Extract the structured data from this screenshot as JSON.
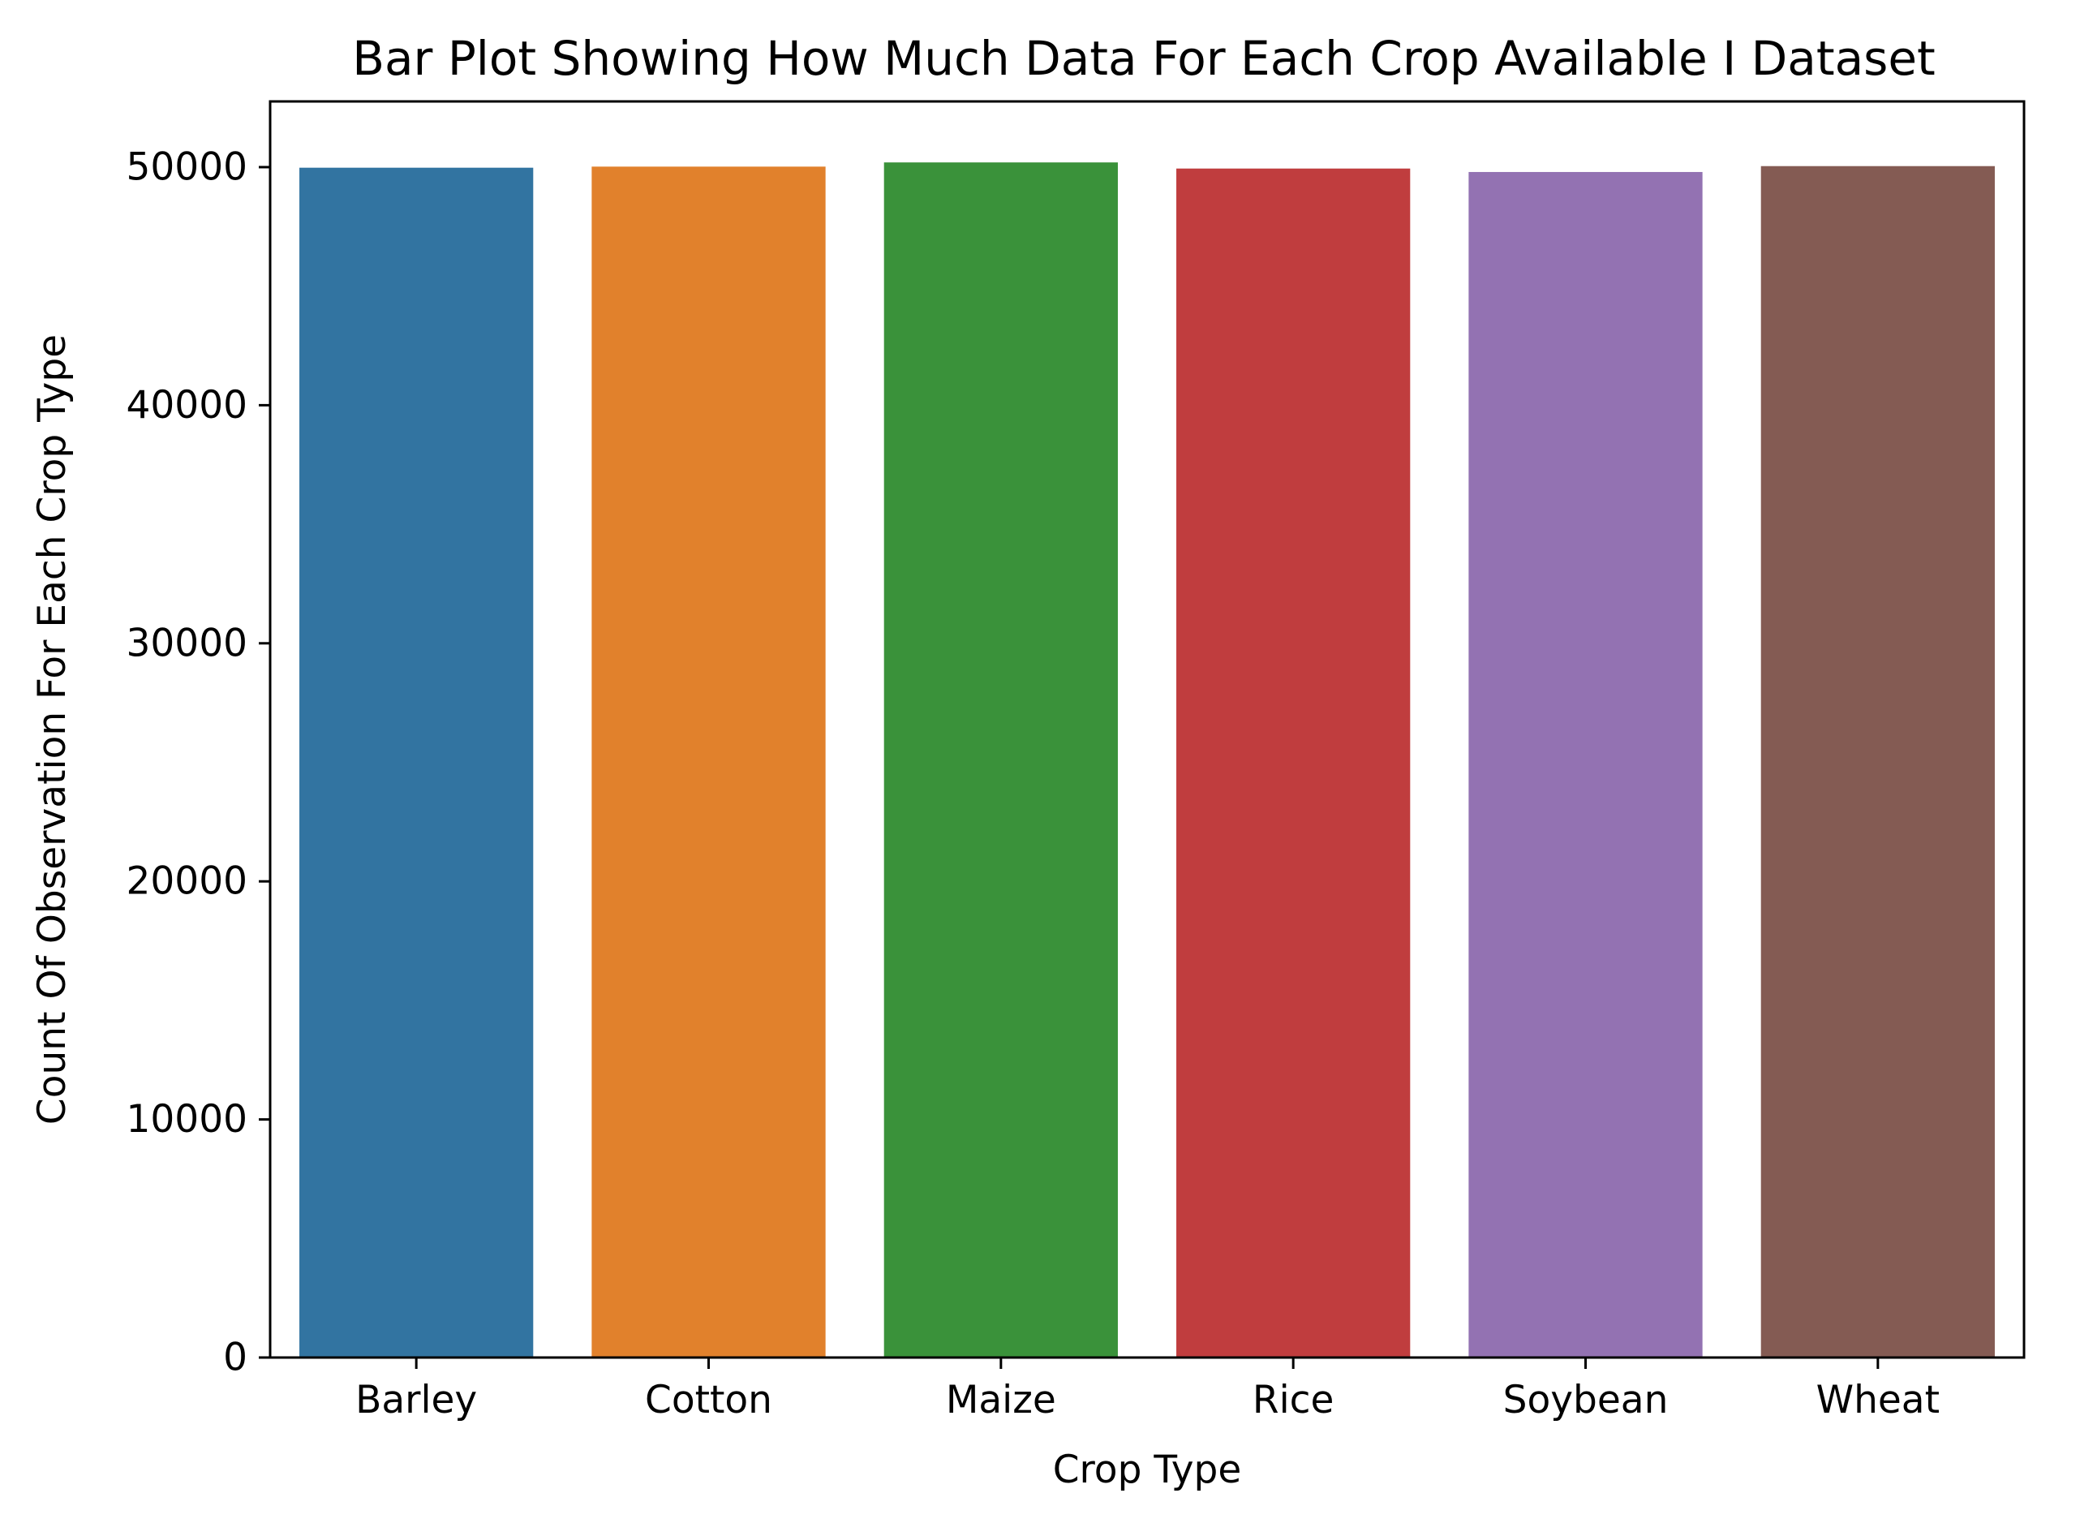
{
  "chart_data": {
    "type": "bar",
    "title": "Bar Plot Showing How Much Data For Each Crop Available I Dataset",
    "xlabel": "Crop Type",
    "ylabel": "Count Of Observation For Each Crop Type",
    "categories": [
      "Barley",
      "Cotton",
      "Maize",
      "Rice",
      "Soybean",
      "Wheat"
    ],
    "values": [
      49976,
      50022,
      50198,
      49941,
      49796,
      50043
    ],
    "colors": [
      "#3274a1",
      "#e1812c",
      "#3a923a",
      "#c03d3e",
      "#9372b2",
      "#845b53"
    ],
    "ylim": [
      0,
      52760
    ],
    "yticks": [
      0,
      10000,
      20000,
      30000,
      40000,
      50000
    ],
    "grid": false,
    "legend": false
  }
}
